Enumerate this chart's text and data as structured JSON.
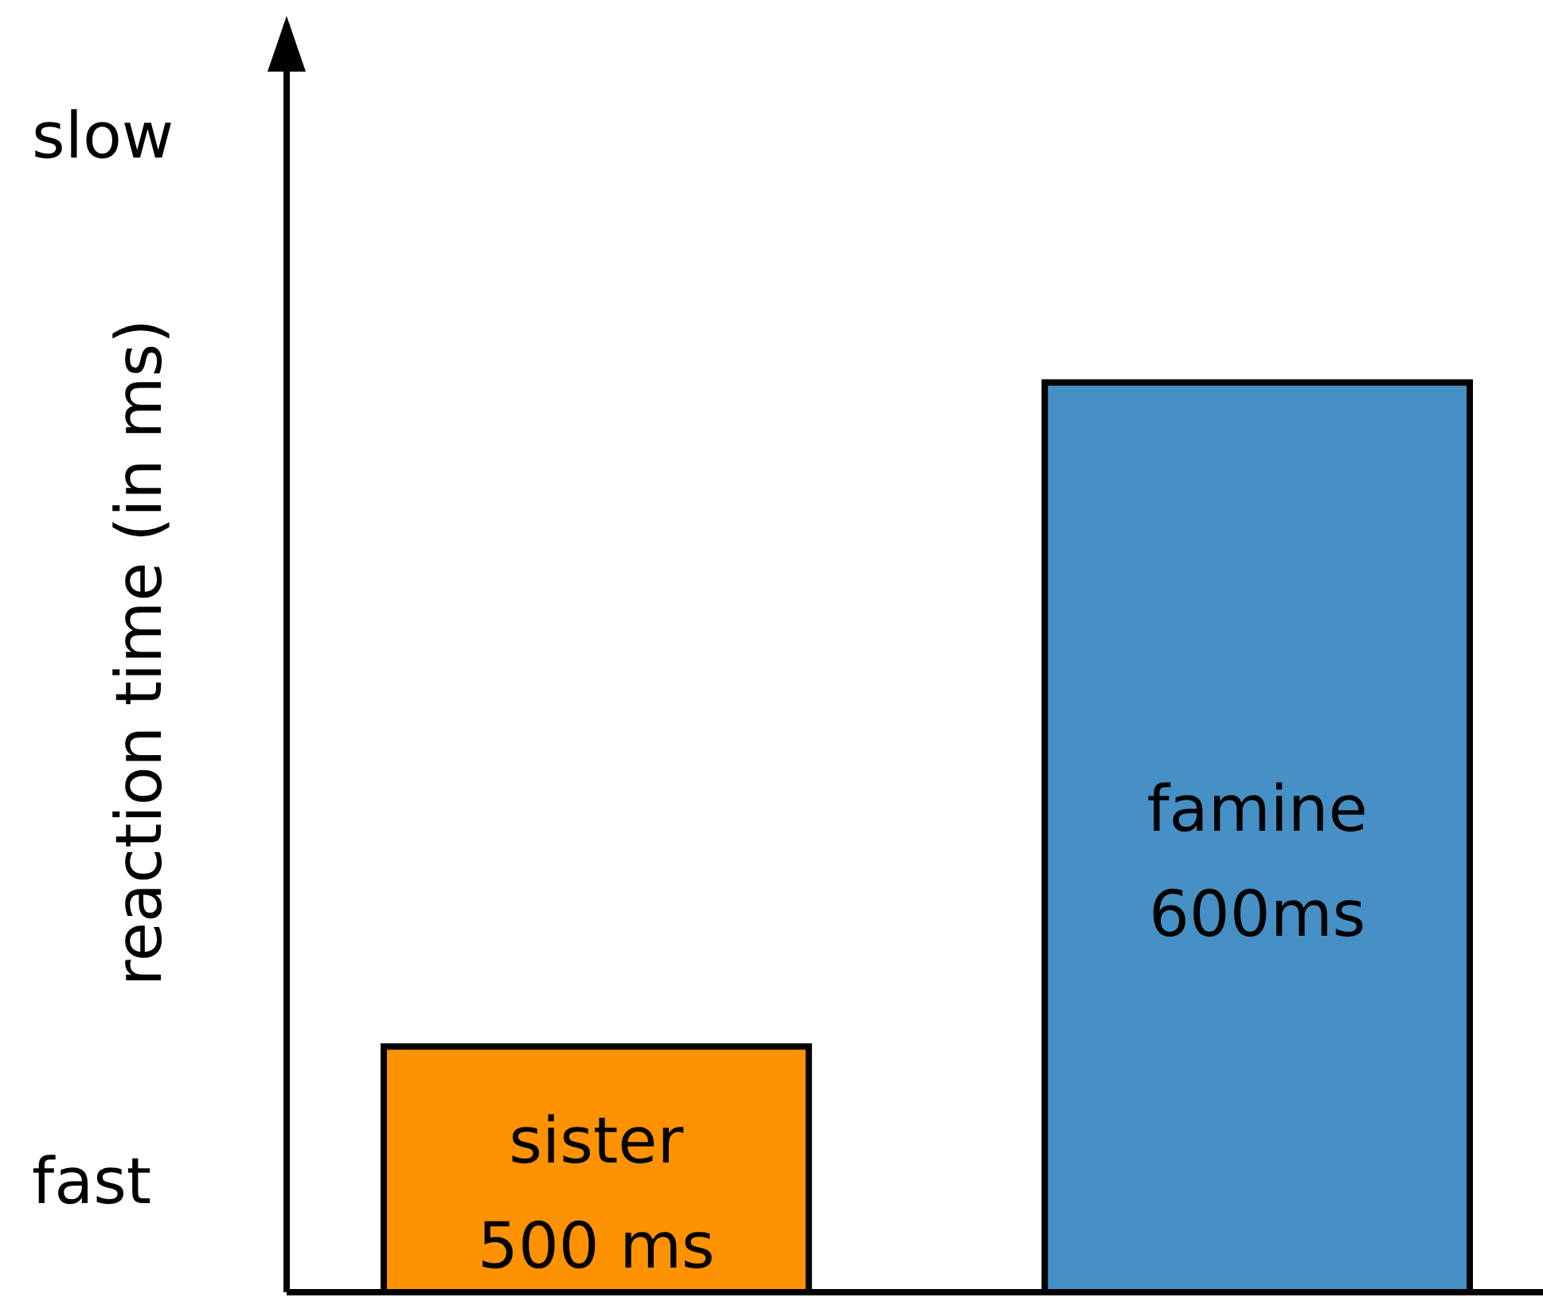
{
  "chart_data": {
    "type": "bar",
    "ylabel": "reaction time (in ms)",
    "categories": [
      "sister",
      "famine"
    ],
    "values": [
      500,
      600
    ],
    "value_labels": [
      "500 ms",
      "600ms"
    ],
    "colors": [
      "#ff9200",
      "#4690c5"
    ],
    "ylim": [
      463,
      654
    ],
    "annotations": [
      "slow",
      "fast"
    ]
  }
}
